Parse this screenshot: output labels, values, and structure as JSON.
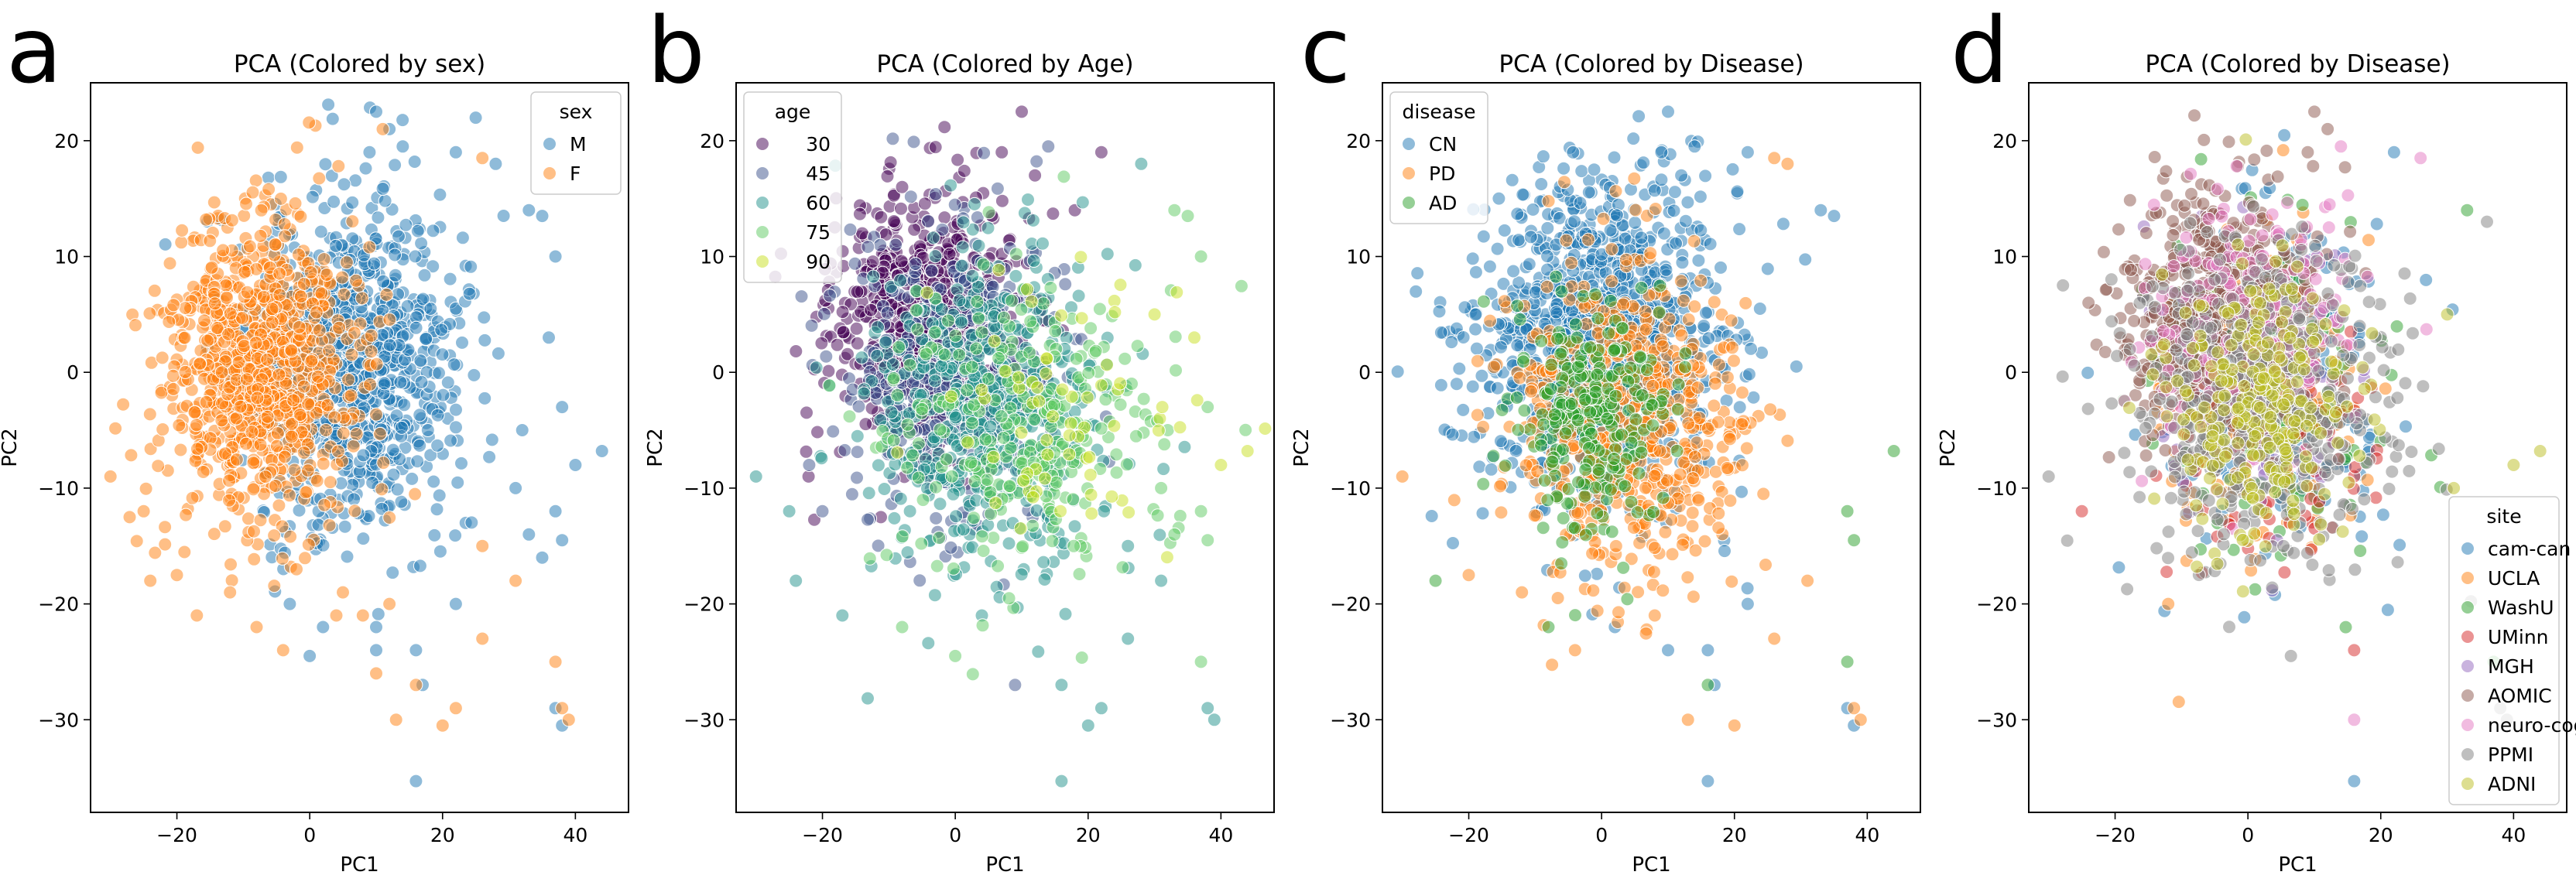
{
  "figure": {
    "panel_letters": [
      "a",
      "b",
      "c",
      "d"
    ]
  },
  "chart_data": [
    {
      "panel": "a",
      "type": "scatter",
      "title": "PCA (Colored by sex)",
      "xlabel": "PC1",
      "ylabel": "PC2",
      "xlim": [
        -33,
        48
      ],
      "ylim": [
        -38,
        25
      ],
      "xticks": [
        -20,
        0,
        20,
        40
      ],
      "yticks": [
        -30,
        -20,
        -10,
        0,
        10,
        20
      ],
      "grid": false,
      "legend": {
        "title": "sex",
        "placement": "top-right",
        "entries": [
          "M",
          "F"
        ]
      },
      "series": [
        {
          "name": "M",
          "color": "#1f77b4",
          "cloud": {
            "cx": 6,
            "cy": 1,
            "sx": 8,
            "sy": 7,
            "n": 900,
            "seed": 11
          },
          "points": [
            [
              10,
              22.5
            ],
            [
              12,
              21
            ],
            [
              9,
              19
            ],
            [
              14,
              19.5
            ],
            [
              22,
              19
            ],
            [
              28,
              18
            ],
            [
              33,
              14
            ],
            [
              35,
              13.5
            ],
            [
              37,
              10
            ],
            [
              36,
              3
            ],
            [
              38,
              -3
            ],
            [
              44,
              -6.8
            ],
            [
              40,
              -8
            ],
            [
              32,
              -5
            ],
            [
              31,
              -10
            ],
            [
              33,
              -14
            ],
            [
              37,
              -12
            ],
            [
              38,
              -14.5
            ],
            [
              35,
              -16
            ],
            [
              22,
              -20
            ],
            [
              16,
              -24
            ],
            [
              10,
              -24
            ],
            [
              17,
              -27
            ],
            [
              0,
              -24.5
            ],
            [
              -3,
              -20
            ],
            [
              2,
              -22
            ],
            [
              37,
              -29
            ],
            [
              38,
              -30.5
            ],
            [
              16,
              -35.3
            ],
            [
              10,
              -22
            ]
          ]
        },
        {
          "name": "F",
          "color": "#ff7f0e",
          "cloud": {
            "cx": -8,
            "cy": 0,
            "sx": 7,
            "sy": 6.5,
            "n": 900,
            "seed": 23
          },
          "points": [
            [
              11,
              21
            ],
            [
              26,
              18.5
            ],
            [
              -30,
              -9
            ],
            [
              -25,
              -12
            ],
            [
              -24,
              -18
            ],
            [
              -20,
              -17.5
            ],
            [
              -17,
              -21
            ],
            [
              -12,
              -19
            ],
            [
              -8,
              -22
            ],
            [
              -4,
              -24
            ],
            [
              -2,
              -17
            ],
            [
              5,
              -19
            ],
            [
              8,
              -21
            ],
            [
              10,
              -26
            ],
            [
              4,
              -21
            ],
            [
              13,
              -30
            ],
            [
              16,
              -27
            ],
            [
              20,
              -30.5
            ],
            [
              22,
              -29
            ],
            [
              26,
              -15
            ],
            [
              31,
              -18
            ],
            [
              37,
              -25
            ],
            [
              38,
              -29
            ],
            [
              39,
              -30
            ],
            [
              26,
              -23
            ],
            [
              12,
              -20
            ]
          ]
        }
      ]
    },
    {
      "panel": "b",
      "type": "scatter",
      "title": "PCA (Colored by Age)",
      "xlabel": "PC1",
      "ylabel": "PC2",
      "xlim": [
        -33,
        48
      ],
      "ylim": [
        -38,
        25
      ],
      "xticks": [
        -20,
        0,
        20,
        40
      ],
      "yticks": [
        -30,
        -20,
        -10,
        0,
        10,
        20
      ],
      "grid": false,
      "legend": {
        "title": "age",
        "placement": "top-left",
        "entries": [
          "30",
          "45",
          "60",
          "75",
          "90"
        ]
      },
      "colormap": "viridis",
      "series": [
        {
          "name": "30",
          "color": "#440154",
          "cloud": {
            "cx": -4,
            "cy": 4,
            "sx": 7,
            "sy": 5.5,
            "n": 700,
            "seed": 31
          },
          "points": [
            [
              10,
              22.5
            ],
            [
              7,
              19
            ],
            [
              -8,
              16
            ],
            [
              22,
              19
            ],
            [
              12,
              17
            ],
            [
              -14,
              12
            ],
            [
              18,
              14
            ]
          ]
        },
        {
          "name": "45",
          "color": "#3b528b",
          "cloud": {
            "cx": 0,
            "cy": 0,
            "sx": 8,
            "sy": 6.5,
            "n": 400,
            "seed": 37
          },
          "points": [
            [
              14,
              19.5
            ],
            [
              -22,
              -8
            ],
            [
              -20,
              -12
            ],
            [
              9,
              -27
            ]
          ]
        },
        {
          "name": "60",
          "color": "#21918c",
          "cloud": {
            "cx": 5,
            "cy": -3,
            "sx": 9,
            "sy": 7.5,
            "n": 500,
            "seed": 41
          },
          "points": [
            [
              28,
              18
            ],
            [
              -30,
              -9
            ],
            [
              -25,
              -12
            ],
            [
              -24,
              -18
            ],
            [
              -17,
              -21
            ],
            [
              4,
              -21
            ],
            [
              16,
              -35.3
            ],
            [
              20,
              -30.5
            ],
            [
              22,
              -29
            ],
            [
              26,
              -15
            ],
            [
              26,
              -23
            ],
            [
              31,
              -18
            ],
            [
              38,
              -29
            ],
            [
              39,
              -30
            ],
            [
              16,
              -27
            ]
          ]
        },
        {
          "name": "75",
          "color": "#5ec962",
          "cloud": {
            "cx": 10,
            "cy": -6,
            "sx": 10,
            "sy": 7,
            "n": 280,
            "seed": 43
          },
          "points": [
            [
              33,
              14
            ],
            [
              35,
              13.5
            ],
            [
              37,
              10
            ],
            [
              38,
              -3
            ],
            [
              32,
              -5
            ],
            [
              31,
              -10
            ],
            [
              33,
              -14
            ],
            [
              37,
              -12
            ],
            [
              37,
              -25
            ],
            [
              38,
              -14.5
            ],
            [
              -8,
              -22
            ],
            [
              0,
              -24.5
            ]
          ]
        },
        {
          "name": "90",
          "color": "#c8e020",
          "cloud": {
            "cx": 18,
            "cy": -4,
            "sx": 9,
            "sy": 6,
            "n": 70,
            "seed": 47
          },
          "points": [
            [
              44,
              -6.8
            ],
            [
              40,
              -8
            ],
            [
              36,
              3
            ],
            [
              30,
              5
            ]
          ]
        }
      ]
    },
    {
      "panel": "c",
      "type": "scatter",
      "title": "PCA (Colored by Disease)",
      "xlabel": "PC1",
      "ylabel": "PC2",
      "xlim": [
        -33,
        48
      ],
      "ylim": [
        -38,
        25
      ],
      "xticks": [
        -20,
        0,
        20,
        40
      ],
      "yticks": [
        -30,
        -20,
        -10,
        0,
        10,
        20
      ],
      "grid": false,
      "legend": {
        "title": "disease",
        "placement": "top-left",
        "entries": [
          "CN",
          "PD",
          "AD"
        ]
      },
      "series": [
        {
          "name": "CN",
          "color": "#1f77b4",
          "cloud": {
            "cx": 0,
            "cy": 3,
            "sx": 9,
            "sy": 7,
            "n": 1100,
            "seed": 53
          },
          "points": [
            [
              10,
              22.5
            ],
            [
              14,
              19.5
            ],
            [
              9,
              19
            ],
            [
              12,
              17
            ],
            [
              22,
              19
            ],
            [
              33,
              14
            ],
            [
              35,
              13.5
            ],
            [
              16,
              -35.3
            ],
            [
              10,
              -24
            ],
            [
              17,
              -27
            ],
            [
              37,
              -29
            ],
            [
              38,
              -30.5
            ],
            [
              22,
              -20
            ],
            [
              16,
              -24
            ],
            [
              2,
              -22
            ]
          ]
        },
        {
          "name": "PD",
          "color": "#ff7f0e",
          "cloud": {
            "cx": 4,
            "cy": -4,
            "sx": 9,
            "sy": 7,
            "n": 600,
            "seed": 59
          },
          "points": [
            [
              26,
              18.5
            ],
            [
              28,
              18
            ],
            [
              -30,
              -9
            ],
            [
              -20,
              -17.5
            ],
            [
              -12,
              -19
            ],
            [
              -4,
              -24
            ],
            [
              8,
              -21
            ],
            [
              13,
              -30
            ],
            [
              20,
              -30.5
            ],
            [
              31,
              -18
            ],
            [
              26,
              -23
            ],
            [
              38,
              -29
            ],
            [
              39,
              -30
            ]
          ]
        },
        {
          "name": "AD",
          "color": "#2ca02c",
          "cloud": {
            "cx": -2,
            "cy": -4,
            "sx": 6,
            "sy": 5,
            "n": 250,
            "seed": 61
          },
          "points": [
            [
              44,
              -6.8
            ],
            [
              37,
              -12
            ],
            [
              38,
              -14.5
            ],
            [
              37,
              -25
            ],
            [
              -25,
              -18
            ],
            [
              -8,
              -22
            ],
            [
              16,
              -27
            ]
          ]
        }
      ]
    },
    {
      "panel": "d",
      "type": "scatter",
      "title": "PCA (Colored by Disease)",
      "xlabel": "PC1",
      "ylabel": "PC2",
      "xlim": [
        -33,
        48
      ],
      "ylim": [
        -38,
        25
      ],
      "xticks": [
        -20,
        0,
        20,
        40
      ],
      "yticks": [
        -30,
        -20,
        -10,
        0,
        10,
        20
      ],
      "grid": false,
      "legend": {
        "title": "site",
        "placement": "bottom-right",
        "entries": [
          "cam-can",
          "UCLA",
          "WashU",
          "UMinn",
          "MGH",
          "AOMIC",
          "neuro-cog",
          "PPMI",
          "ADNI"
        ]
      },
      "series": [
        {
          "name": "cam-can",
          "color": "#1f77b4",
          "cloud": {
            "cx": 3,
            "cy": 0,
            "sx": 9,
            "sy": 7,
            "n": 260,
            "seed": 71
          },
          "points": [
            [
              16,
              -35.3
            ],
            [
              22,
              19
            ]
          ]
        },
        {
          "name": "UCLA",
          "color": "#ff7f0e",
          "cloud": {
            "cx": 2,
            "cy": -2,
            "sx": 8,
            "sy": 7,
            "n": 140,
            "seed": 73
          },
          "points": [
            [
              -12,
              -20
            ]
          ]
        },
        {
          "name": "WashU",
          "color": "#2ca02c",
          "cloud": {
            "cx": 4,
            "cy": -3,
            "sx": 9,
            "sy": 7,
            "n": 120,
            "seed": 79
          },
          "points": [
            [
              37,
              -25
            ],
            [
              33,
              14
            ]
          ]
        },
        {
          "name": "UMinn",
          "color": "#d62728",
          "cloud": {
            "cx": 3,
            "cy": -6,
            "sx": 8,
            "sy": 6,
            "n": 90,
            "seed": 83
          },
          "points": [
            [
              -25,
              -12
            ],
            [
              16,
              -24
            ]
          ]
        },
        {
          "name": "MGH",
          "color": "#9467bd",
          "cloud": {
            "cx": 0,
            "cy": 0,
            "sx": 7,
            "sy": 6,
            "n": 90,
            "seed": 89
          },
          "points": []
        },
        {
          "name": "AOMIC",
          "color": "#8c564b",
          "cloud": {
            "cx": -5,
            "cy": 5,
            "sx": 7,
            "sy": 5.5,
            "n": 500,
            "seed": 97
          },
          "points": [
            [
              10,
              22.5
            ],
            [
              9,
              19
            ],
            [
              12,
              21
            ],
            [
              -24,
              6
            ]
          ]
        },
        {
          "name": "neuro-cog",
          "color": "#e377c2",
          "cloud": {
            "cx": 1,
            "cy": 4,
            "sx": 8,
            "sy": 6,
            "n": 220,
            "seed": 101
          },
          "points": [
            [
              14,
              19.5
            ],
            [
              26,
              18.5
            ],
            [
              16,
              -30
            ]
          ]
        },
        {
          "name": "PPMI",
          "color": "#7f7f7f",
          "cloud": {
            "cx": 2,
            "cy": -3,
            "sx": 10,
            "sy": 7,
            "n": 450,
            "seed": 103
          },
          "points": [
            [
              -30,
              -9
            ],
            [
              36,
              13
            ],
            [
              38,
              -29
            ],
            [
              39,
              -30
            ]
          ]
        },
        {
          "name": "ADNI",
          "color": "#bcbd22",
          "cloud": {
            "cx": 2,
            "cy": -2,
            "sx": 7,
            "sy": 6,
            "n": 260,
            "seed": 107
          },
          "points": [
            [
              44,
              -6.8
            ],
            [
              40,
              -8
            ],
            [
              30,
              5
            ],
            [
              31,
              -10
            ]
          ]
        }
      ]
    }
  ]
}
